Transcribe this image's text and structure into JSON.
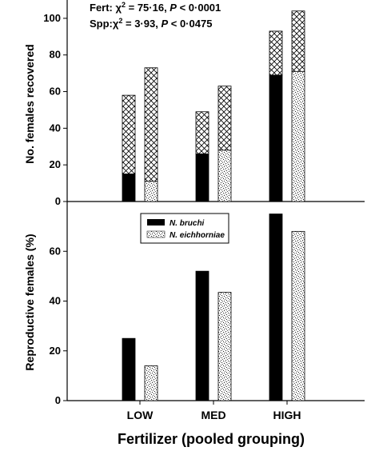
{
  "chart_data": [
    {
      "type": "bar",
      "panel": "top",
      "stacked": true,
      "categories": [
        "LOW",
        "MED",
        "HIGH"
      ],
      "ylabel": "No. females recovered",
      "ylim": [
        0,
        110
      ],
      "yticks": [
        "0",
        "20",
        "40",
        "60",
        "80",
        "100"
      ],
      "annotations": {
        "fert_prefix": "Fert: χ",
        "fert_sup": "2",
        "fert_mid": " = 75·16, ",
        "fert_p": "P",
        "fert_val": " < 0·0001",
        "spp_prefix": "Spp:χ",
        "spp_sup": "2",
        "spp_mid": " = 3·93, ",
        "spp_p": "P",
        "spp_val": " < 0·0475"
      },
      "series": [
        {
          "species": "N. bruchi",
          "reproductive": [
            15,
            26,
            69
          ],
          "total": [
            58,
            49,
            93
          ]
        },
        {
          "species": "N. eichhorniae",
          "reproductive": [
            11,
            28,
            71
          ],
          "total": [
            73,
            63,
            104
          ]
        }
      ]
    },
    {
      "type": "bar",
      "panel": "bottom",
      "categories": [
        "LOW",
        "MED",
        "HIGH"
      ],
      "ylabel": "Reproductive females (%)",
      "xlabel": "Fertilizer (pooled grouping)",
      "ylim": [
        0,
        80
      ],
      "yticks": [
        "0",
        "20",
        "40",
        "60"
      ],
      "legend": {
        "placement": "top-center",
        "entries": [
          "N. bruchi",
          "N. eichhorniae"
        ]
      },
      "series": [
        {
          "name": "N. bruchi",
          "values": [
            25,
            52,
            75
          ]
        },
        {
          "name": "N. eichhorniae",
          "values": [
            14,
            43.5,
            68
          ]
        }
      ]
    }
  ],
  "colors": {
    "bruchi": "#000000",
    "eichhorniae_speckle": "#333333",
    "hatch": "#000000"
  }
}
